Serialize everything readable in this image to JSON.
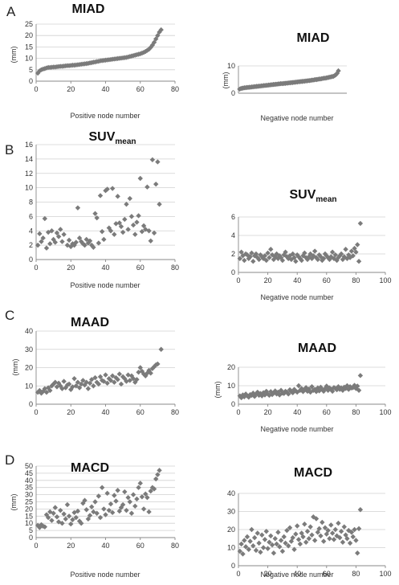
{
  "panels": [
    {
      "letter": "A"
    },
    {
      "letter": "B"
    },
    {
      "letter": "C"
    },
    {
      "letter": "D"
    }
  ],
  "colors": {
    "marker": "#7b7b7b",
    "grid": "#d0d0d0",
    "axis": "#888888"
  },
  "chart_data": [
    {
      "id": "miad-pos",
      "type": "scatter",
      "marker": "diamond",
      "title": "MIAD",
      "title_sub": "",
      "xlabel": "Positive node number",
      "ylabel": "(mm)",
      "xlim": [
        0,
        80
      ],
      "ylim": [
        0,
        25
      ],
      "xticks": [
        0,
        20,
        40,
        60,
        80
      ],
      "yticks": [
        0,
        5,
        10,
        15,
        20,
        25
      ],
      "grid": "horizontal",
      "y": [
        3.5,
        4.5,
        5.0,
        5.3,
        5.5,
        5.8,
        6.0,
        6.0,
        6.1,
        6.2,
        6.2,
        6.3,
        6.4,
        6.5,
        6.5,
        6.6,
        6.7,
        6.8,
        6.8,
        6.9,
        7.0,
        7.0,
        7.1,
        7.2,
        7.3,
        7.4,
        7.5,
        7.6,
        7.7,
        7.8,
        8.0,
        8.1,
        8.3,
        8.4,
        8.6,
        8.7,
        8.9,
        9.0,
        9.1,
        9.2,
        9.3,
        9.4,
        9.5,
        9.6,
        9.7,
        9.8,
        9.9,
        10.0,
        10.1,
        10.2,
        10.3,
        10.4,
        10.6,
        10.8,
        11.0,
        11.2,
        11.4,
        11.6,
        11.8,
        12.0,
        12.3,
        12.6,
        13.0,
        13.5,
        14.0,
        14.8,
        15.8,
        17.0,
        18.5,
        20.0,
        21.5,
        22.5
      ]
    },
    {
      "id": "miad-neg",
      "type": "scatter",
      "marker": "diamond",
      "title": "MIAD",
      "title_sub": "",
      "xlabel": "Negative node number",
      "ylabel": "(mm)",
      "xlim": [
        0,
        90
      ],
      "ylim": [
        0,
        10
      ],
      "xticks": [],
      "yticks": [
        0,
        10
      ],
      "grid": "horizontal",
      "y": [
        1.5,
        1.7,
        1.8,
        1.9,
        2.0,
        2.0,
        2.1,
        2.1,
        2.2,
        2.2,
        2.3,
        2.3,
        2.4,
        2.4,
        2.5,
        2.5,
        2.6,
        2.6,
        2.7,
        2.7,
        2.8,
        2.8,
        2.9,
        2.9,
        3.0,
        3.0,
        3.1,
        3.1,
        3.2,
        3.2,
        3.3,
        3.3,
        3.4,
        3.4,
        3.5,
        3.5,
        3.5,
        3.6,
        3.6,
        3.7,
        3.7,
        3.8,
        3.8,
        3.9,
        3.9,
        4.0,
        4.0,
        4.1,
        4.1,
        4.2,
        4.2,
        4.3,
        4.3,
        4.4,
        4.4,
        4.5,
        4.5,
        4.6,
        4.6,
        4.7,
        4.8,
        4.8,
        4.9,
        5.0,
        5.0,
        5.1,
        5.2,
        5.2,
        5.3,
        5.4,
        5.5,
        5.5,
        5.6,
        5.7,
        5.8,
        5.9,
        6.0,
        6.1,
        6.2,
        6.5,
        6.8,
        7.3,
        8.2
      ]
    },
    {
      "id": "suv-pos",
      "type": "scatter",
      "marker": "diamond",
      "title": "SUV",
      "title_sub": "mean",
      "xlabel": "Positive node number",
      "ylabel": "",
      "xlim": [
        0,
        80
      ],
      "ylim": [
        0,
        16
      ],
      "xticks": [
        0,
        20,
        40,
        60,
        80
      ],
      "yticks": [
        0,
        2,
        4,
        6,
        8,
        10,
        12,
        14,
        16
      ],
      "grid": "horizontal",
      "y": [
        2.0,
        3.6,
        2.5,
        3.0,
        5.7,
        1.6,
        3.8,
        2.2,
        4.0,
        2.8,
        2.4,
        3.7,
        3.2,
        4.2,
        2.5,
        3.5,
        2.0,
        2.7,
        1.8,
        2.2,
        2.0,
        2.4,
        7.2,
        3.0,
        2.5,
        2.2,
        2.0,
        2.8,
        2.3,
        2.6,
        2.0,
        1.7,
        6.4,
        5.8,
        2.3,
        8.9,
        3.9,
        2.8,
        9.6,
        9.8,
        4.4,
        4.0,
        9.9,
        3.5,
        5.0,
        8.8,
        5.1,
        4.6,
        3.8,
        5.6,
        7.7,
        4.2,
        8.5,
        6.0,
        4.8,
        3.5,
        5.2,
        6.1,
        11.3,
        3.9,
        4.7,
        4.2,
        10.1,
        4.0,
        2.6,
        13.9,
        3.7,
        10.5,
        13.6,
        7.7
      ],
      "x": [
        1,
        2,
        3,
        4,
        5,
        6,
        7,
        8,
        9,
        10,
        11,
        12,
        13,
        14,
        15,
        16,
        18,
        19,
        20,
        21,
        22,
        23,
        24,
        25,
        26,
        27,
        28,
        29,
        30,
        31,
        32,
        33,
        34,
        35,
        36,
        37,
        38,
        39,
        40,
        41,
        42,
        43,
        44,
        45,
        46,
        47,
        48,
        49,
        50,
        51,
        52,
        53,
        54,
        55,
        56,
        57,
        58,
        59,
        60,
        61,
        62,
        63,
        64,
        65,
        66,
        67,
        68,
        69,
        70,
        71
      ]
    },
    {
      "id": "suv-neg",
      "type": "scatter",
      "marker": "diamond",
      "title": "SUV",
      "title_sub": "mean",
      "xlabel": "Negative node number",
      "ylabel": "",
      "xlim": [
        0,
        100
      ],
      "ylim": [
        0,
        6
      ],
      "xticks": [
        0,
        20,
        40,
        60,
        80,
        100
      ],
      "yticks": [
        0,
        2,
        4,
        6
      ],
      "grid": "horizontal",
      "y": [
        1.5,
        2.2,
        1.8,
        1.3,
        2.0,
        1.9,
        1.5,
        1.7,
        2.1,
        1.2,
        1.8,
        2.0,
        1.6,
        1.4,
        1.9,
        1.7,
        1.5,
        1.8,
        1.3,
        2.1,
        1.6,
        2.5,
        1.9,
        1.4,
        1.7,
        2.0,
        1.5,
        1.8,
        1.6,
        1.3,
        1.9,
        2.2,
        1.7,
        1.5,
        1.8,
        1.4,
        2.0,
        1.6,
        1.2,
        1.9,
        1.7,
        1.5,
        1.3,
        1.8,
        2.1,
        1.6,
        1.4,
        1.7,
        2.0,
        1.5,
        1.8,
        2.3,
        1.6,
        1.4,
        1.9,
        1.7,
        1.3,
        1.5,
        2.0,
        1.8,
        1.6,
        1.4,
        1.7,
        2.2,
        1.5,
        1.9,
        1.3,
        1.6,
        1.8,
        2.0,
        1.4,
        1.7,
        2.5,
        1.5,
        1.9,
        1.6,
        2.3,
        1.8,
        2.6,
        2.2,
        3.0,
        1.2,
        5.3
      ]
    },
    {
      "id": "maad-pos",
      "type": "scatter",
      "marker": "diamond",
      "title": "MAAD",
      "title_sub": "",
      "xlabel": "",
      "ylabel": "(mm)",
      "xlim": [
        0,
        80
      ],
      "ylim": [
        0,
        40
      ],
      "xticks": [
        0,
        20,
        40,
        60,
        80
      ],
      "yticks": [
        0,
        10,
        20,
        30,
        40
      ],
      "grid": "horizontal",
      "y": [
        6.5,
        7.5,
        6.0,
        7.0,
        8.5,
        6.5,
        9.0,
        7.5,
        10.0,
        11.0,
        12.0,
        9.5,
        11.5,
        10.0,
        8.5,
        12.5,
        9.0,
        10.5,
        11.0,
        8.0,
        9.5,
        14.0,
        10.0,
        12.0,
        9.0,
        11.0,
        13.0,
        10.5,
        12.0,
        8.5,
        11.5,
        13.5,
        10.0,
        14.5,
        12.0,
        11.0,
        15.0,
        13.0,
        12.5,
        16.0,
        11.5,
        14.0,
        13.0,
        15.5,
        12.0,
        14.5,
        13.5,
        16.5,
        11.0,
        15.0,
        14.0,
        12.5,
        16.0,
        13.0,
        15.5,
        14.0,
        12.0,
        13.5,
        17.5,
        20.0,
        18.0,
        16.5,
        15.5,
        17.0,
        18.5,
        17.0,
        19.5,
        20.5,
        21.5,
        22.0,
        30.0
      ],
      "x": [
        1,
        2,
        3,
        4,
        5,
        6,
        7,
        8,
        9,
        10,
        11,
        12,
        13,
        14,
        15,
        16,
        17,
        18,
        19,
        20,
        21,
        22,
        23,
        24,
        25,
        26,
        27,
        28,
        29,
        30,
        31,
        32,
        33,
        34,
        35,
        36,
        37,
        38,
        39,
        40,
        41,
        42,
        43,
        44,
        45,
        46,
        47,
        48,
        49,
        50,
        51,
        52,
        53,
        54,
        55,
        56,
        57,
        58,
        59,
        60,
        61,
        62,
        63,
        64,
        65,
        66,
        67,
        68,
        69,
        70,
        72
      ]
    },
    {
      "id": "maad-neg",
      "type": "scatter",
      "marker": "diamond",
      "title": "MAAD",
      "title_sub": "",
      "xlabel": "Negative node number",
      "ylabel": "(mm)",
      "xlim": [
        0,
        100
      ],
      "ylim": [
        0,
        20
      ],
      "xticks": [
        0,
        20,
        40,
        60,
        80,
        100
      ],
      "yticks": [
        0,
        10,
        20
      ],
      "grid": "horizontal",
      "y": [
        4.5,
        3.5,
        5.0,
        4.0,
        5.5,
        4.5,
        3.8,
        5.2,
        4.8,
        6.0,
        4.2,
        5.5,
        6.5,
        4.8,
        5.8,
        4.5,
        6.2,
        5.0,
        7.0,
        5.5,
        4.8,
        6.8,
        5.2,
        6.0,
        7.2,
        5.5,
        6.5,
        5.0,
        7.5,
        6.0,
        5.8,
        7.0,
        6.5,
        5.5,
        7.8,
        6.8,
        6.2,
        8.0,
        7.2,
        6.5,
        10.0,
        7.5,
        8.5,
        6.8,
        7.8,
        9.0,
        7.0,
        8.2,
        6.5,
        9.5,
        7.5,
        8.0,
        6.8,
        8.8,
        7.2,
        9.2,
        8.0,
        7.0,
        8.5,
        9.8,
        7.5,
        8.8,
        8.2,
        7.0,
        9.0,
        8.5,
        7.8,
        9.5,
        8.0,
        8.8,
        7.5,
        9.2,
        8.5,
        10.0,
        8.0,
        9.5,
        8.8,
        9.0,
        10.2,
        8.5,
        9.8,
        7.5,
        15.5
      ]
    },
    {
      "id": "macd-pos",
      "type": "scatter",
      "marker": "diamond",
      "title": "MACD",
      "title_sub": "",
      "xlabel": "Positive node number",
      "ylabel": "(mm)",
      "xlim": [
        0,
        80
      ],
      "ylim": [
        0,
        50
      ],
      "xticks": [
        0,
        20,
        40,
        60,
        80
      ],
      "yticks": [
        0,
        5,
        10,
        15,
        20,
        25,
        30,
        35,
        40,
        45,
        50
      ],
      "grid": "horizontal",
      "y": [
        8.5,
        7.0,
        9.0,
        8.0,
        7.5,
        16.0,
        14.0,
        18.0,
        12.0,
        17.0,
        21.0,
        14.5,
        11.0,
        19.0,
        10.0,
        16.5,
        13.0,
        23.0,
        15.0,
        9.5,
        12.5,
        17.5,
        14.0,
        18.5,
        11.5,
        10.0,
        24.0,
        26.0,
        19.5,
        13.0,
        15.5,
        21.5,
        18.0,
        25.0,
        17.0,
        29.0,
        14.0,
        35.0,
        20.0,
        16.0,
        31.0,
        19.0,
        23.5,
        17.5,
        29.5,
        25.5,
        33.0,
        18.5,
        21.0,
        23.0,
        32.0,
        19.0,
        28.0,
        25.0,
        17.0,
        30.0,
        22.0,
        27.0,
        35.0,
        38.0,
        28.5,
        20.0,
        30.5,
        28.0,
        18.0,
        32.5,
        35.0,
        34.0,
        41.0,
        44.0,
        47.0
      ],
      "x": [
        1,
        2,
        3,
        4,
        5,
        6,
        7,
        8,
        9,
        10,
        11,
        12,
        13,
        14,
        15,
        16,
        17,
        18,
        19,
        20,
        21,
        22,
        23,
        24,
        25,
        26,
        27,
        28,
        29,
        30,
        31,
        32,
        33,
        34,
        35,
        36,
        37,
        38,
        39,
        40,
        41,
        42,
        43,
        44,
        45,
        46,
        47,
        48,
        49,
        50,
        51,
        52,
        53,
        54,
        55,
        56,
        57,
        58,
        59,
        60,
        61,
        62,
        63,
        64,
        65,
        66,
        67,
        68,
        69,
        70,
        71
      ]
    },
    {
      "id": "macd-neg",
      "type": "scatter",
      "marker": "diamond",
      "title": "MACD",
      "title_sub": "",
      "xlabel": "Negative node number",
      "ylabel": "",
      "xlim": [
        0,
        100
      ],
      "ylim": [
        0,
        40
      ],
      "xticks": [
        0,
        20,
        40,
        60,
        80,
        100
      ],
      "yticks": [
        0,
        10,
        20,
        30,
        40
      ],
      "grid": "horizontal",
      "y": [
        8.0,
        12.0,
        6.5,
        14.0,
        10.5,
        16.0,
        9.0,
        13.5,
        20.0,
        11.0,
        15.5,
        8.5,
        18.0,
        12.5,
        7.5,
        17.0,
        10.0,
        14.5,
        19.0,
        9.5,
        13.0,
        16.5,
        11.5,
        7.0,
        15.0,
        12.0,
        18.5,
        10.5,
        14.0,
        8.0,
        16.0,
        12.5,
        19.5,
        11.0,
        21.0,
        13.5,
        15.5,
        9.0,
        17.5,
        22.0,
        14.5,
        12.0,
        18.0,
        16.0,
        23.0,
        13.0,
        19.0,
        15.0,
        21.5,
        17.0,
        27.0,
        14.0,
        26.0,
        18.5,
        20.5,
        16.5,
        24.0,
        13.5,
        21.0,
        17.5,
        19.5,
        15.0,
        22.5,
        18.0,
        14.5,
        20.0,
        16.5,
        23.5,
        15.5,
        19.0,
        13.0,
        21.5,
        17.0,
        15.0,
        19.5,
        12.5,
        18.5,
        16.0,
        20.0,
        14.0,
        7.0,
        20.5,
        31.0
      ]
    }
  ]
}
